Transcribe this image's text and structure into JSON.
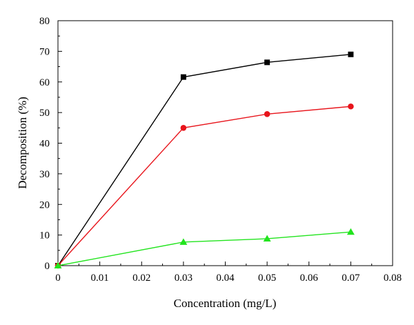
{
  "chart_data": {
    "type": "line",
    "title": "",
    "xlabel": "Concentration (mg/L)",
    "ylabel": "Decomposition (%)",
    "xlim": [
      0,
      0.08
    ],
    "ylim": [
      0,
      80
    ],
    "x_ticks": [
      0,
      0.01,
      0.02,
      0.03,
      0.04,
      0.05,
      0.06,
      0.07,
      0.08
    ],
    "x_tick_labels": [
      "0",
      "0.01",
      "0.02",
      "0.03",
      "0.04",
      "0.05",
      "0.06",
      "0.07",
      "0.08"
    ],
    "y_ticks": [
      0,
      10,
      20,
      30,
      40,
      50,
      60,
      70,
      80
    ],
    "y_tick_labels": [
      "0",
      "10",
      "20",
      "30",
      "40",
      "50",
      "60",
      "70",
      "80"
    ],
    "grid": false,
    "legend": "none",
    "series": [
      {
        "color": "#000000",
        "marker": "square",
        "x": [
          0,
          0.03,
          0.05,
          0.07
        ],
        "y": [
          0,
          61.6,
          66.4,
          69
        ]
      },
      {
        "color": "#e8141b",
        "marker": "circle",
        "x": [
          0,
          0.03,
          0.05,
          0.07
        ],
        "y": [
          0,
          45,
          49.5,
          52
        ]
      },
      {
        "color": "#22e41e",
        "marker": "triangle",
        "x": [
          0,
          0.03,
          0.05,
          0.07
        ],
        "y": [
          0,
          7.7,
          8.8,
          11
        ]
      }
    ]
  }
}
